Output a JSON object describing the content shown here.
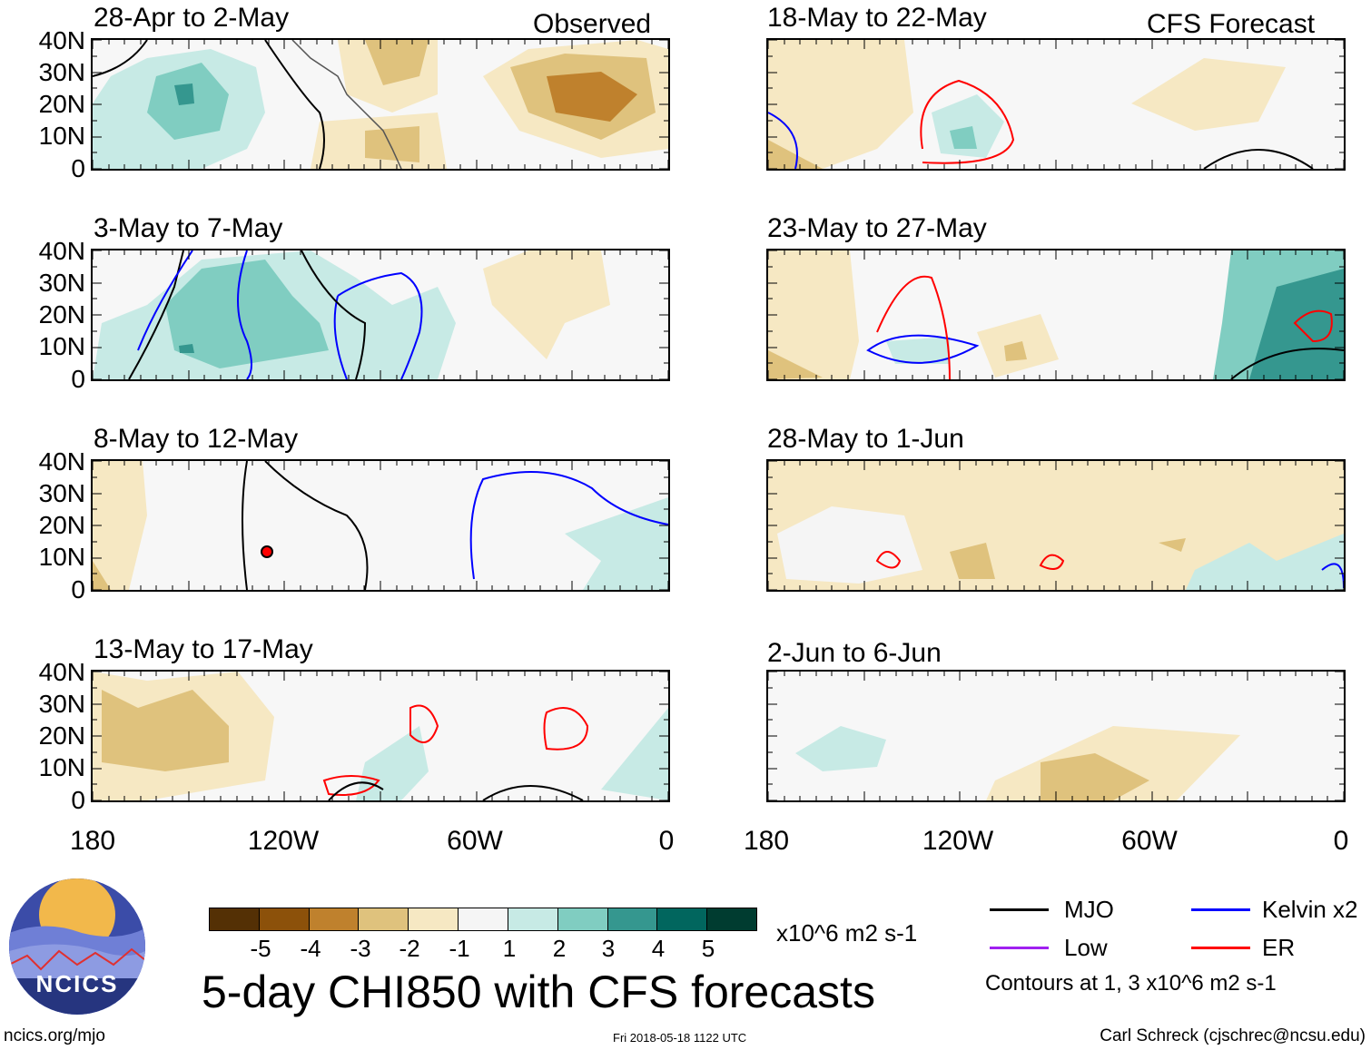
{
  "observed_label": "Observed",
  "forecast_label": "CFS Forecast",
  "panels": [
    {
      "title": "28-Apr to 2-May"
    },
    {
      "title": "3-May to 7-May"
    },
    {
      "title": "8-May to 12-May"
    },
    {
      "title": "13-May to 17-May"
    },
    {
      "title": "18-May to 22-May"
    },
    {
      "title": "23-May to 27-May"
    },
    {
      "title": "28-May to 1-Jun"
    },
    {
      "title": "2-Jun to 6-Jun"
    }
  ],
  "y_axis": [
    "40N",
    "30N",
    "20N",
    "10N",
    "0"
  ],
  "x_axis": [
    "180",
    "120W",
    "60W",
    "0"
  ],
  "colorbar": {
    "colors": [
      "#543005",
      "#8c510a",
      "#bf812d",
      "#dfc27d",
      "#f6e8c3",
      "#f5f5f5",
      "#c7eae5",
      "#80cdc1",
      "#35978f",
      "#01665e",
      "#003c30"
    ],
    "labels": [
      "-5",
      "-4",
      "-3",
      "-2",
      "-1",
      "1",
      "2",
      "3",
      "4",
      "5"
    ],
    "units": "x10^6 m2 s-1"
  },
  "main_title": "5-day CHI850 with CFS forecasts",
  "legend": {
    "mjo": {
      "label": "MJO",
      "color": "#000000"
    },
    "kelvin": {
      "label": "Kelvin x2",
      "color": "#0000ff"
    },
    "low": {
      "label": "Low",
      "color": "#a020f0"
    },
    "er": {
      "label": "ER",
      "color": "#ff0000"
    },
    "note": "Contours at 1, 3 x10^6 m2 s-1"
  },
  "logo_text": "NCICS",
  "footer": {
    "left": "ncics.org/mjo",
    "center": "Fri 2018-05-18 1122 UTC",
    "right": "Carl Schreck (cjschrec@ncsu.edu)"
  }
}
